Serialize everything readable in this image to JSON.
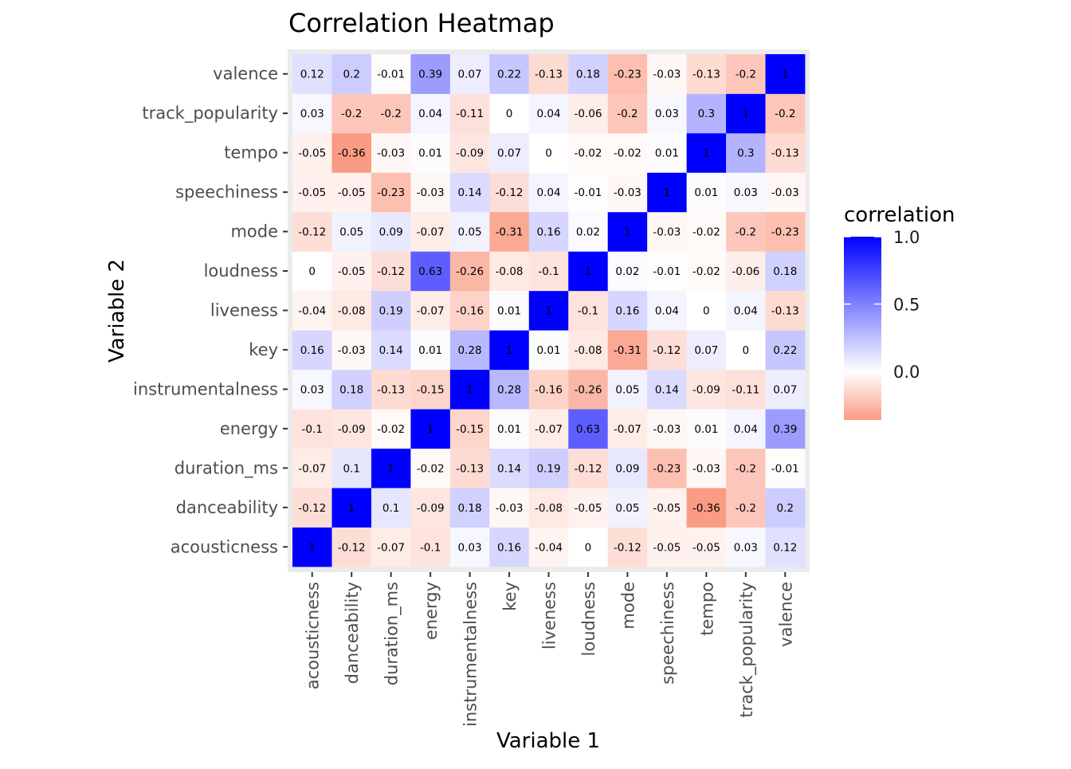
{
  "chart_data": {
    "type": "heatmap",
    "title": "Correlation Heatmap",
    "xlabel": "Variable 1",
    "ylabel": "Variable 2",
    "variables": [
      "acousticness",
      "danceability",
      "duration_ms",
      "energy",
      "instrumentalness",
      "key",
      "liveness",
      "loudness",
      "mode",
      "speechiness",
      "tempo",
      "track_popularity",
      "valence"
    ],
    "matrix": [
      [
        1,
        -0.12,
        -0.07,
        -0.1,
        0.03,
        0.16,
        -0.04,
        0,
        -0.12,
        -0.05,
        -0.05,
        0.03,
        0.12
      ],
      [
        -0.12,
        1,
        0.1,
        -0.09,
        0.18,
        -0.03,
        -0.08,
        -0.05,
        0.05,
        -0.05,
        -0.36,
        -0.2,
        0.2
      ],
      [
        -0.07,
        0.1,
        1,
        -0.02,
        -0.13,
        0.14,
        0.19,
        -0.12,
        0.09,
        -0.23,
        -0.03,
        -0.2,
        -0.01
      ],
      [
        -0.1,
        -0.09,
        -0.02,
        1,
        -0.15,
        0.01,
        -0.07,
        0.63,
        -0.07,
        -0.03,
        0.01,
        0.04,
        0.39
      ],
      [
        0.03,
        0.18,
        -0.13,
        -0.15,
        1,
        0.28,
        -0.16,
        -0.26,
        0.05,
        0.14,
        -0.09,
        -0.11,
        0.07
      ],
      [
        0.16,
        -0.03,
        0.14,
        0.01,
        0.28,
        1,
        0.01,
        -0.08,
        -0.31,
        -0.12,
        0.07,
        0,
        0.22
      ],
      [
        -0.04,
        -0.08,
        0.19,
        -0.07,
        -0.16,
        0.01,
        1,
        -0.1,
        0.16,
        0.04,
        0,
        0.04,
        -0.13
      ],
      [
        0,
        -0.05,
        -0.12,
        0.63,
        -0.26,
        -0.08,
        -0.1,
        1,
        0.02,
        -0.01,
        -0.02,
        -0.06,
        0.18
      ],
      [
        -0.12,
        0.05,
        0.09,
        -0.07,
        0.05,
        -0.31,
        0.16,
        0.02,
        1,
        -0.03,
        -0.02,
        -0.2,
        -0.23
      ],
      [
        -0.05,
        -0.05,
        -0.23,
        -0.03,
        0.14,
        -0.12,
        0.04,
        -0.01,
        -0.03,
        1,
        0.01,
        0.03,
        -0.03
      ],
      [
        -0.05,
        -0.36,
        -0.03,
        0.01,
        -0.09,
        0.07,
        0,
        -0.02,
        -0.02,
        0.01,
        1,
        0.3,
        -0.13
      ],
      [
        0.03,
        -0.2,
        -0.2,
        0.04,
        -0.11,
        0,
        0.04,
        -0.06,
        -0.2,
        0.03,
        0.3,
        1,
        -0.2
      ],
      [
        0.12,
        0.2,
        -0.01,
        0.39,
        0.07,
        0.22,
        -0.13,
        0.18,
        -0.23,
        -0.03,
        -0.13,
        -0.2,
        1
      ]
    ],
    "legend": {
      "title": "correlation",
      "ticks": [
        {
          "value": 1.0,
          "label": "1.0"
        },
        {
          "value": 0.5,
          "label": "0.5"
        },
        {
          "value": 0.0,
          "label": "0.0"
        }
      ],
      "range": [
        -0.36,
        1
      ]
    },
    "colors": {
      "high": "#0000ff",
      "mid": "#ffffff",
      "low": "#fa9b83",
      "panel_background": "#ebebeb",
      "tick_text": "#4d4d4d"
    }
  }
}
